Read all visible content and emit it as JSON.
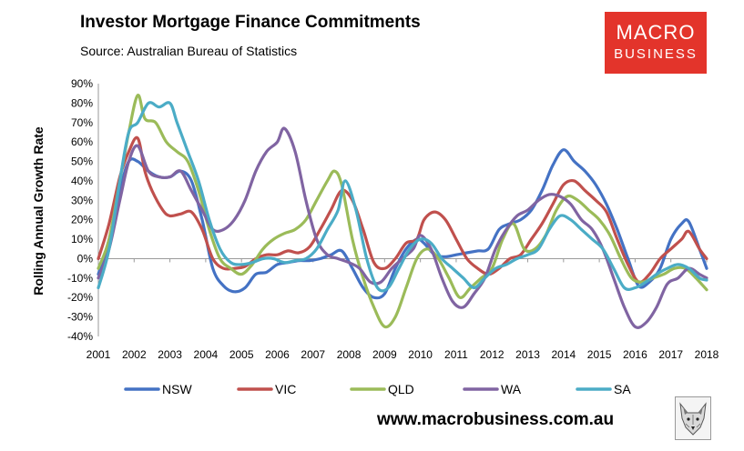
{
  "header": {
    "title": "Investor Mortgage Finance Commitments",
    "subtitle": "Source: Australian Bureau of Statistics"
  },
  "logo": {
    "line1": "MACRO",
    "line2": "BUSINESS"
  },
  "footer": {
    "website": "www.macrobusiness.com.au"
  },
  "chart_data": {
    "type": "line",
    "title": "Investor Mortgage Finance Commitments",
    "ylabel": "Rolling Annual Growth Rate",
    "xlabel": "",
    "ylim": [
      -40,
      90
    ],
    "xlim": [
      2001,
      2018
    ],
    "yticks": [
      "90%",
      "80%",
      "70%",
      "60%",
      "50%",
      "40%",
      "30%",
      "20%",
      "10%",
      "0%",
      "-10%",
      "-20%",
      "-30%",
      "-40%"
    ],
    "xticks": [
      "2001",
      "2002",
      "2003",
      "2004",
      "2005",
      "2006",
      "2007",
      "2008",
      "2009",
      "2010",
      "2011",
      "2012",
      "2013",
      "2014",
      "2015",
      "2016",
      "2017",
      "2018"
    ],
    "grid": false,
    "legend_position": "bottom",
    "series": [
      {
        "name": "NSW",
        "color": "#4472c4",
        "points": [
          [
            2001,
            -8
          ],
          [
            2001.3,
            10
          ],
          [
            2001.6,
            35
          ],
          [
            2001.85,
            50
          ],
          [
            2002.1,
            50
          ],
          [
            2002.4,
            45
          ],
          [
            2002.7,
            42
          ],
          [
            2003,
            42
          ],
          [
            2003.3,
            45
          ],
          [
            2003.6,
            40
          ],
          [
            2003.9,
            20
          ],
          [
            2004.2,
            -5
          ],
          [
            2004.5,
            -14
          ],
          [
            2004.8,
            -17
          ],
          [
            2005.1,
            -15
          ],
          [
            2005.4,
            -8
          ],
          [
            2005.7,
            -7
          ],
          [
            2006,
            -3
          ],
          [
            2006.3,
            -2
          ],
          [
            2006.6,
            -1
          ],
          [
            2006.9,
            -1
          ],
          [
            2007.2,
            0
          ],
          [
            2007.5,
            2
          ],
          [
            2007.8,
            4
          ],
          [
            2008.1,
            -5
          ],
          [
            2008.4,
            -15
          ],
          [
            2008.7,
            -20
          ],
          [
            2009,
            -18
          ],
          [
            2009.3,
            -5
          ],
          [
            2009.6,
            5
          ],
          [
            2009.9,
            10
          ],
          [
            2010.1,
            8
          ],
          [
            2010.4,
            2
          ],
          [
            2010.7,
            1
          ],
          [
            2011,
            2
          ],
          [
            2011.3,
            3
          ],
          [
            2011.6,
            4
          ],
          [
            2011.9,
            5
          ],
          [
            2012.2,
            15
          ],
          [
            2012.5,
            18
          ],
          [
            2012.8,
            20
          ],
          [
            2013.1,
            25
          ],
          [
            2013.4,
            35
          ],
          [
            2013.7,
            48
          ],
          [
            2014,
            56
          ],
          [
            2014.3,
            50
          ],
          [
            2014.6,
            45
          ],
          [
            2014.9,
            38
          ],
          [
            2015.2,
            28
          ],
          [
            2015.5,
            15
          ],
          [
            2015.8,
            0
          ],
          [
            2016.1,
            -14
          ],
          [
            2016.4,
            -12
          ],
          [
            2016.7,
            -5
          ],
          [
            2017,
            10
          ],
          [
            2017.3,
            18
          ],
          [
            2017.5,
            19
          ],
          [
            2017.8,
            5
          ],
          [
            2018,
            -5
          ]
        ]
      },
      {
        "name": "VIC",
        "color": "#c0504d",
        "points": [
          [
            2001,
            0
          ],
          [
            2001.3,
            18
          ],
          [
            2001.6,
            42
          ],
          [
            2001.85,
            55
          ],
          [
            2002.1,
            62
          ],
          [
            2002.3,
            45
          ],
          [
            2002.5,
            35
          ],
          [
            2002.8,
            25
          ],
          [
            2003,
            22
          ],
          [
            2003.3,
            23
          ],
          [
            2003.6,
            24
          ],
          [
            2003.9,
            15
          ],
          [
            2004.2,
            0
          ],
          [
            2004.5,
            -5
          ],
          [
            2004.8,
            -5
          ],
          [
            2005.1,
            -4
          ],
          [
            2005.4,
            0
          ],
          [
            2005.7,
            2
          ],
          [
            2006,
            2
          ],
          [
            2006.3,
            4
          ],
          [
            2006.6,
            3
          ],
          [
            2006.9,
            6
          ],
          [
            2007.2,
            15
          ],
          [
            2007.5,
            25
          ],
          [
            2007.8,
            35
          ],
          [
            2008.1,
            30
          ],
          [
            2008.4,
            15
          ],
          [
            2008.7,
            -2
          ],
          [
            2009,
            -5
          ],
          [
            2009.3,
            0
          ],
          [
            2009.6,
            8
          ],
          [
            2009.9,
            10
          ],
          [
            2010.1,
            20
          ],
          [
            2010.4,
            24
          ],
          [
            2010.7,
            20
          ],
          [
            2011,
            10
          ],
          [
            2011.3,
            0
          ],
          [
            2011.6,
            -5
          ],
          [
            2011.9,
            -8
          ],
          [
            2012.2,
            -5
          ],
          [
            2012.5,
            0
          ],
          [
            2012.8,
            2
          ],
          [
            2013.1,
            10
          ],
          [
            2013.4,
            18
          ],
          [
            2013.7,
            28
          ],
          [
            2014,
            38
          ],
          [
            2014.3,
            40
          ],
          [
            2014.6,
            35
          ],
          [
            2014.9,
            30
          ],
          [
            2015.2,
            24
          ],
          [
            2015.5,
            10
          ],
          [
            2015.8,
            -3
          ],
          [
            2016.1,
            -12
          ],
          [
            2016.4,
            -8
          ],
          [
            2016.7,
            0
          ],
          [
            2017,
            5
          ],
          [
            2017.3,
            10
          ],
          [
            2017.5,
            14
          ],
          [
            2017.8,
            5
          ],
          [
            2018,
            0
          ]
        ]
      },
      {
        "name": "QLD",
        "color": "#9bbb59",
        "points": [
          [
            2001,
            -5
          ],
          [
            2001.3,
            10
          ],
          [
            2001.6,
            40
          ],
          [
            2001.85,
            65
          ],
          [
            2002.1,
            84
          ],
          [
            2002.3,
            72
          ],
          [
            2002.6,
            70
          ],
          [
            2002.9,
            60
          ],
          [
            2003.2,
            55
          ],
          [
            2003.5,
            50
          ],
          [
            2003.8,
            35
          ],
          [
            2004.1,
            15
          ],
          [
            2004.4,
            0
          ],
          [
            2004.7,
            -5
          ],
          [
            2005,
            -8
          ],
          [
            2005.3,
            -3
          ],
          [
            2005.6,
            5
          ],
          [
            2005.9,
            10
          ],
          [
            2006.2,
            13
          ],
          [
            2006.5,
            15
          ],
          [
            2006.8,
            20
          ],
          [
            2007.1,
            30
          ],
          [
            2007.4,
            40
          ],
          [
            2007.6,
            45
          ],
          [
            2007.8,
            38
          ],
          [
            2008.1,
            10
          ],
          [
            2008.4,
            -10
          ],
          [
            2008.7,
            -25
          ],
          [
            2009,
            -35
          ],
          [
            2009.3,
            -30
          ],
          [
            2009.6,
            -15
          ],
          [
            2009.9,
            0
          ],
          [
            2010.2,
            5
          ],
          [
            2010.5,
            0
          ],
          [
            2010.8,
            -10
          ],
          [
            2011.1,
            -20
          ],
          [
            2011.4,
            -15
          ],
          [
            2011.7,
            -10
          ],
          [
            2012,
            -5
          ],
          [
            2012.3,
            10
          ],
          [
            2012.6,
            18
          ],
          [
            2012.9,
            5
          ],
          [
            2013.2,
            5
          ],
          [
            2013.5,
            12
          ],
          [
            2013.8,
            25
          ],
          [
            2014.1,
            32
          ],
          [
            2014.4,
            30
          ],
          [
            2014.7,
            25
          ],
          [
            2015,
            20
          ],
          [
            2015.3,
            12
          ],
          [
            2015.6,
            0
          ],
          [
            2015.9,
            -10
          ],
          [
            2016.2,
            -12
          ],
          [
            2016.5,
            -10
          ],
          [
            2016.8,
            -8
          ],
          [
            2017.1,
            -5
          ],
          [
            2017.4,
            -5
          ],
          [
            2017.7,
            -10
          ],
          [
            2018,
            -16
          ]
        ]
      },
      {
        "name": "WA",
        "color": "#8064a2",
        "points": [
          [
            2001,
            -10
          ],
          [
            2001.3,
            5
          ],
          [
            2001.6,
            30
          ],
          [
            2001.85,
            50
          ],
          [
            2002.1,
            58
          ],
          [
            2002.4,
            45
          ],
          [
            2002.7,
            42
          ],
          [
            2003,
            42
          ],
          [
            2003.3,
            45
          ],
          [
            2003.6,
            35
          ],
          [
            2003.9,
            25
          ],
          [
            2004.2,
            15
          ],
          [
            2004.5,
            15
          ],
          [
            2004.8,
            20
          ],
          [
            2005.1,
            30
          ],
          [
            2005.4,
            45
          ],
          [
            2005.7,
            55
          ],
          [
            2006,
            60
          ],
          [
            2006.2,
            67
          ],
          [
            2006.5,
            55
          ],
          [
            2006.8,
            30
          ],
          [
            2007.1,
            10
          ],
          [
            2007.4,
            2
          ],
          [
            2007.7,
            0
          ],
          [
            2008,
            -2
          ],
          [
            2008.3,
            -5
          ],
          [
            2008.6,
            -12
          ],
          [
            2008.9,
            -12
          ],
          [
            2009.2,
            -5
          ],
          [
            2009.5,
            0
          ],
          [
            2009.8,
            5
          ],
          [
            2010,
            12
          ],
          [
            2010.3,
            5
          ],
          [
            2010.6,
            -10
          ],
          [
            2010.9,
            -22
          ],
          [
            2011.2,
            -25
          ],
          [
            2011.5,
            -18
          ],
          [
            2011.8,
            -10
          ],
          [
            2012.1,
            5
          ],
          [
            2012.4,
            15
          ],
          [
            2012.7,
            22
          ],
          [
            2013,
            25
          ],
          [
            2013.3,
            30
          ],
          [
            2013.6,
            33
          ],
          [
            2013.9,
            32
          ],
          [
            2014.2,
            28
          ],
          [
            2014.5,
            20
          ],
          [
            2014.8,
            15
          ],
          [
            2015.1,
            5
          ],
          [
            2015.4,
            -10
          ],
          [
            2015.7,
            -25
          ],
          [
            2016,
            -35
          ],
          [
            2016.3,
            -33
          ],
          [
            2016.6,
            -25
          ],
          [
            2016.9,
            -13
          ],
          [
            2017.2,
            -10
          ],
          [
            2017.5,
            -5
          ],
          [
            2017.8,
            -8
          ],
          [
            2018,
            -10
          ]
        ]
      },
      {
        "name": "SA",
        "color": "#4bacc6",
        "points": [
          [
            2001,
            -15
          ],
          [
            2001.3,
            5
          ],
          [
            2001.6,
            40
          ],
          [
            2001.85,
            65
          ],
          [
            2002.1,
            70
          ],
          [
            2002.4,
            80
          ],
          [
            2002.7,
            78
          ],
          [
            2003,
            80
          ],
          [
            2003.2,
            70
          ],
          [
            2003.5,
            55
          ],
          [
            2003.8,
            40
          ],
          [
            2004.1,
            20
          ],
          [
            2004.4,
            5
          ],
          [
            2004.7,
            -2
          ],
          [
            2005,
            -3
          ],
          [
            2005.3,
            -2
          ],
          [
            2005.6,
            0
          ],
          [
            2005.9,
            0
          ],
          [
            2006.2,
            -2
          ],
          [
            2006.5,
            -1
          ],
          [
            2006.8,
            0
          ],
          [
            2007.1,
            5
          ],
          [
            2007.4,
            15
          ],
          [
            2007.7,
            25
          ],
          [
            2007.9,
            40
          ],
          [
            2008.2,
            25
          ],
          [
            2008.5,
            0
          ],
          [
            2008.8,
            -15
          ],
          [
            2009.1,
            -15
          ],
          [
            2009.4,
            -5
          ],
          [
            2009.7,
            5
          ],
          [
            2010,
            10
          ],
          [
            2010.3,
            8
          ],
          [
            2010.6,
            0
          ],
          [
            2010.9,
            -5
          ],
          [
            2011.2,
            -10
          ],
          [
            2011.5,
            -15
          ],
          [
            2011.8,
            -10
          ],
          [
            2012.1,
            -5
          ],
          [
            2012.4,
            -3
          ],
          [
            2012.7,
            0
          ],
          [
            2013,
            2
          ],
          [
            2013.3,
            5
          ],
          [
            2013.6,
            15
          ],
          [
            2013.9,
            22
          ],
          [
            2014.2,
            20
          ],
          [
            2014.5,
            15
          ],
          [
            2014.8,
            10
          ],
          [
            2015.1,
            5
          ],
          [
            2015.4,
            -5
          ],
          [
            2015.7,
            -15
          ],
          [
            2016,
            -15
          ],
          [
            2016.3,
            -12
          ],
          [
            2016.6,
            -8
          ],
          [
            2016.9,
            -5
          ],
          [
            2017.2,
            -3
          ],
          [
            2017.5,
            -5
          ],
          [
            2017.8,
            -10
          ],
          [
            2018,
            -11
          ]
        ]
      }
    ]
  }
}
